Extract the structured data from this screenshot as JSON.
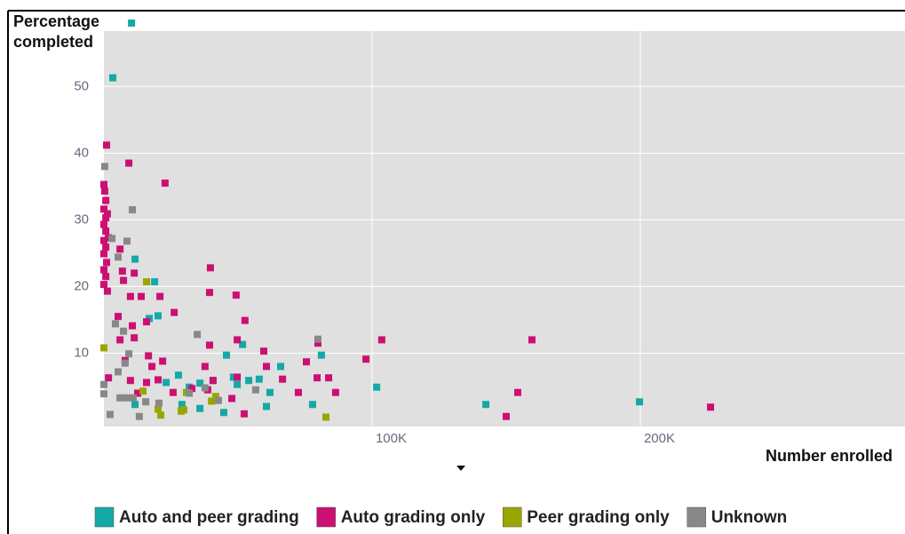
{
  "chart_data": {
    "type": "scatter",
    "x_label": "Number enrolled",
    "y_label": "Percentage completed",
    "xlim": [
      0,
      298700
    ],
    "ylim": [
      -1,
      58.3
    ],
    "xticks": [
      {
        "value": 100000,
        "label": "100K"
      },
      {
        "value": 200000,
        "label": "200K"
      }
    ],
    "yticks": [
      10,
      20,
      30,
      40,
      50
    ],
    "grid": true,
    "legend": "bottom",
    "series": [
      {
        "name": "Auto and peer grading",
        "color": "#14a8a8",
        "x": [
          10300,
          3300,
          11600,
          18900,
          20200,
          16900,
          51700,
          45700,
          65900,
          81100,
          27800,
          23200,
          31800,
          35800,
          40700,
          48300,
          54000,
          57900,
          61900,
          60600,
          44700,
          35800,
          29100,
          11600,
          101700,
          77800,
          142400,
          199700,
          49700
        ],
        "values": [
          59.5,
          51.3,
          24.1,
          20.7,
          15.6,
          15.2,
          11.3,
          9.7,
          8,
          9.7,
          6.7,
          5.6,
          4.9,
          5.5,
          5.9,
          6.4,
          5.9,
          6.1,
          4.1,
          2,
          1.1,
          1.7,
          2.3,
          2.3,
          4.9,
          2.3,
          2.3,
          2.7,
          5.3
        ]
      },
      {
        "name": "Auto grading only",
        "color": "#cc0f72",
        "x": [
          1000,
          0,
          300,
          700,
          0,
          700,
          0,
          700,
          0,
          700,
          0,
          1000,
          0,
          700,
          0,
          1300,
          1700,
          1300,
          9300,
          22800,
          39700,
          39400,
          49300,
          6900,
          6000,
          11300,
          9900,
          13900,
          20900,
          7300,
          26200,
          5300,
          10600,
          15900,
          52600,
          11300,
          6000,
          39400,
          49700,
          59600,
          79800,
          75500,
          103600,
          97700,
          159600,
          7900,
          16600,
          21900,
          17900,
          37700,
          60600,
          1700,
          9900,
          15900,
          20200,
          40700,
          49700,
          66600,
          79500,
          83800,
          86400,
          72500,
          32800,
          25800,
          12600,
          47700,
          52300,
          154300,
          150000,
          226200,
          38700
        ],
        "values": [
          41.2,
          35.3,
          34.3,
          32.9,
          31.6,
          30.3,
          29.3,
          28.3,
          26.9,
          25.9,
          24.9,
          23.6,
          22.5,
          21.5,
          20.3,
          19.3,
          27.3,
          30.9,
          38.5,
          35.5,
          22.8,
          19.1,
          18.7,
          22.3,
          25.6,
          22,
          18.5,
          18.5,
          18.5,
          20.9,
          16.1,
          15.5,
          14.1,
          14.7,
          14.9,
          12.3,
          12,
          11.2,
          12,
          10.3,
          11.5,
          8.7,
          12,
          9.1,
          12,
          8.9,
          9.6,
          8.8,
          8,
          8,
          8,
          6.3,
          5.9,
          5.6,
          6,
          5.9,
          6.4,
          6.1,
          6.3,
          6.3,
          4.1,
          4.1,
          4.7,
          4.1,
          4,
          3.2,
          0.9,
          4.1,
          0.5,
          1.9,
          4.5
        ]
      },
      {
        "name": "Peer grading only",
        "color": "#9aa600",
        "x": [
          0,
          15900,
          14600,
          20200,
          21200,
          28800,
          29800,
          41700,
          40100,
          82800,
          30800
        ],
        "values": [
          10.8,
          20.7,
          4.3,
          1.6,
          0.7,
          1.3,
          1.5,
          3.5,
          2.8,
          0.4,
          4.1
        ]
      },
      {
        "name": "Unknown",
        "color": "#888888",
        "x": [
          300,
          10600,
          8600,
          3000,
          5300,
          4300,
          7300,
          34800,
          79800,
          9300,
          5300,
          0,
          0,
          2300,
          6000,
          8600,
          10900,
          13200,
          15600,
          20500,
          31800,
          37700,
          42700,
          56600,
          7900
        ],
        "values": [
          38,
          31.5,
          26.8,
          27.2,
          24.4,
          14.4,
          13.3,
          12.8,
          12.1,
          9.9,
          7.2,
          5.3,
          3.9,
          0.8,
          3.3,
          3.3,
          3.3,
          0.5,
          2.7,
          2.5,
          4,
          4.8,
          2.9,
          4.5,
          8.5
        ]
      }
    ]
  }
}
